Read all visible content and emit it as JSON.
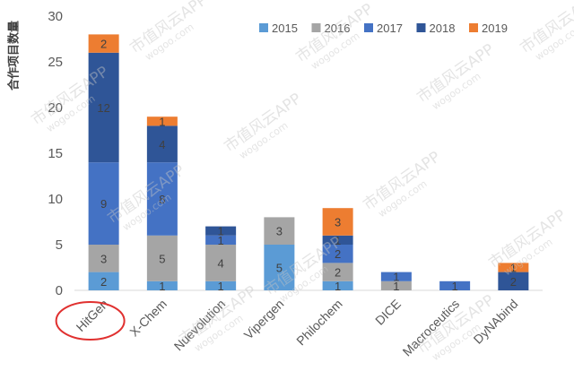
{
  "watermark": {
    "cn": "市值风云APP",
    "url": "wogoo.com"
  },
  "chart_data": {
    "type": "bar",
    "stacked": true,
    "categories": [
      "HitGen",
      "X-Chem",
      "Nuevolution",
      "Vipergen",
      "Philochem",
      "DICE",
      "Macroceutics",
      "DyNAbind"
    ],
    "series": [
      {
        "name": "2015",
        "color": "#5b9bd5",
        "values": [
          2,
          1,
          1,
          5,
          1,
          0,
          0,
          0
        ]
      },
      {
        "name": "2016",
        "color": "#a5a5a5",
        "values": [
          3,
          5,
          4,
          3,
          2,
          1,
          0,
          0
        ]
      },
      {
        "name": "2017",
        "color": "#4472c4",
        "values": [
          9,
          8,
          1,
          0,
          2,
          1,
          1,
          0
        ]
      },
      {
        "name": "2018",
        "color": "#2f5597",
        "values": [
          12,
          4,
          1,
          0,
          1,
          0,
          0,
          2
        ]
      },
      {
        "name": "2019",
        "color": "#ed7d31",
        "values": [
          2,
          1,
          0,
          0,
          3,
          0,
          0,
          1
        ]
      }
    ],
    "ylabel": "合作项目数量",
    "ylim": [
      0,
      30
    ],
    "yticks": [
      0,
      5,
      10,
      15,
      20,
      25,
      30
    ],
    "grid": false,
    "legend": "top-right",
    "data_labels": true,
    "highlight": {
      "category_index": 0,
      "color": "#e0302f"
    }
  }
}
